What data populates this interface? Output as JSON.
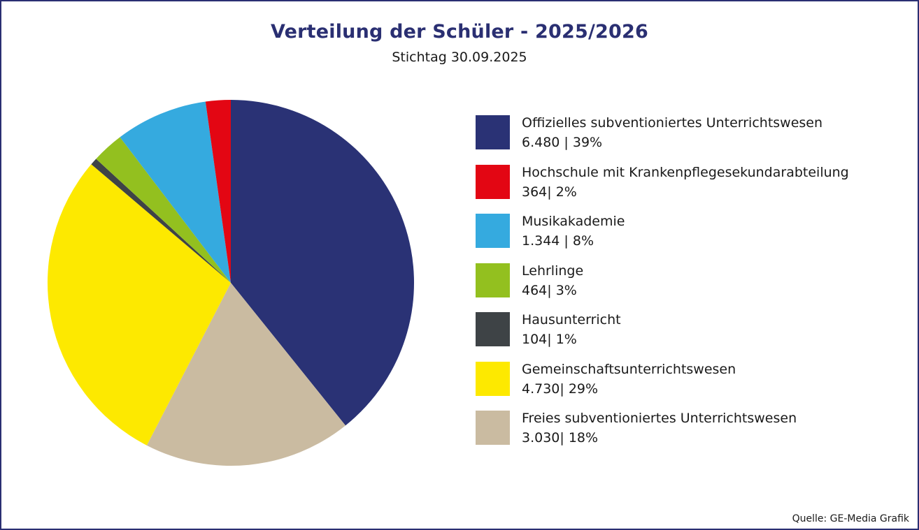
{
  "chart_data": {
    "type": "pie",
    "title": "Verteilung der Schüler - 2025/2026",
    "subtitle": "Stichtag 30.09.2025",
    "slices": [
      {
        "label": "Offizielles subventioniertes Unterrichtswesen",
        "value": 6480,
        "value_text": "6.480 | 39%",
        "color": "#2a3275"
      },
      {
        "label": "Freies subventioniertes Unterrichtswesen",
        "value": 3030,
        "value_text": "3.030| 18%",
        "color": "#cabba1"
      },
      {
        "label": "Gemeinschaftsunterrichtswesen",
        "value": 4730,
        "value_text": "4.730| 29%",
        "color": "#fde900"
      },
      {
        "label": "Hausunterricht",
        "value": 104,
        "value_text": "104| 1%",
        "color": "#3e4346"
      },
      {
        "label": "Lehrlinge",
        "value": 464,
        "value_text": "464| 3%",
        "color": "#93c01f"
      },
      {
        "label": "Musikakademie",
        "value": 1344,
        "value_text": "1.344 | 8%",
        "color": "#35aadf"
      },
      {
        "label": "Hochschule mit Krankenpflegesekundarabteilung",
        "value": 364,
        "value_text": "364| 2%",
        "color": "#e30613"
      }
    ],
    "legend_order": [
      "Offizielles subventioniertes Unterrichtswesen",
      "Hochschule mit Krankenpflegesekundarabteilung",
      "Musikakademie",
      "Lehrlinge",
      "Hausunterricht",
      "Gemeinschaftsunterrichtswesen",
      "Freies subventioniertes Unterrichtswesen"
    ],
    "legend_position": "right",
    "start": "top, clockwise"
  },
  "source": "Quelle: GE-Media Grafik"
}
